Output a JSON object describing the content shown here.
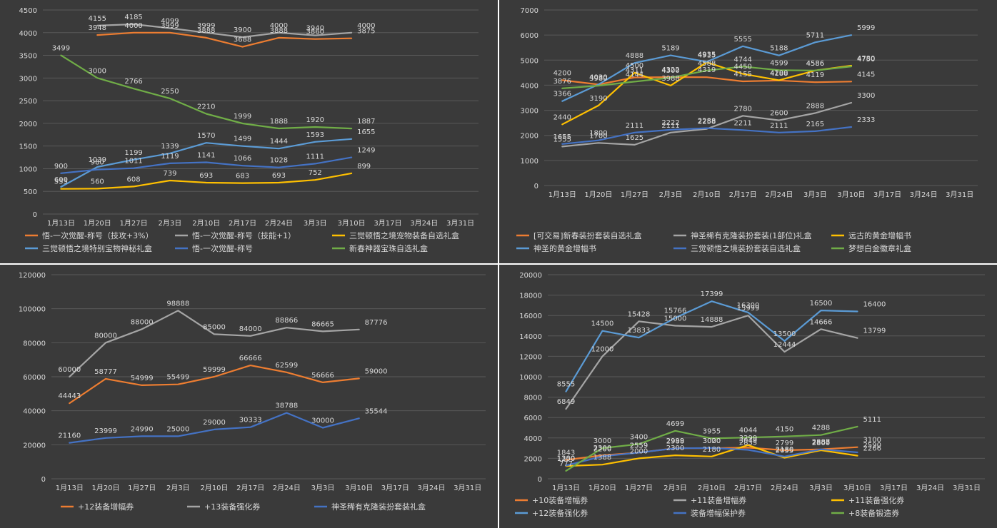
{
  "chart_data": [
    {
      "type": "line",
      "categories": [
        "1月13日",
        "1月20日",
        "1月27日",
        "2月3日",
        "2月10日",
        "2月17日",
        "2月24日",
        "3月3日",
        "3月10日",
        "3月17日",
        "3月24日",
        "3月31日"
      ],
      "ylim": [
        0,
        4500
      ],
      "yticks": [
        0,
        500,
        1000,
        1500,
        2000,
        2500,
        3000,
        3500,
        4000,
        4500
      ],
      "grid": "horizontal",
      "legend_position": "bottom",
      "series": [
        {
          "name": "悟-一次觉醒-称号（技攻+3%）",
          "color": "#ed7d31",
          "values": [
            null,
            3948,
            4000,
            3999,
            3888,
            3688,
            3888,
            3860,
            3875,
            null,
            null,
            null
          ]
        },
        {
          "name": "悟-一次觉醒-称号（技能+1）",
          "color": "#a5a5a5",
          "values": [
            null,
            4155,
            4185,
            4099,
            3999,
            3900,
            4000,
            3940,
            4000,
            null,
            null,
            null
          ]
        },
        {
          "name": "三觉顿悟之境宠物装备自选礼盒",
          "color": "#ffc000",
          "values": [
            555,
            560,
            608,
            739,
            693,
            683,
            693,
            752,
            899,
            null,
            null,
            null
          ]
        },
        {
          "name": "三觉顿悟之境特别宝物神秘礼盒",
          "color": "#5b9bd5",
          "values": [
            600,
            1039,
            1199,
            1339,
            1570,
            1499,
            1444,
            1593,
            1655,
            null,
            null,
            null
          ]
        },
        {
          "name": "悟-一次觉醒-称号",
          "color": "#4472c4",
          "values": [
            900,
            980,
            1011,
            1119,
            1141,
            1066,
            1028,
            1111,
            1249,
            null,
            null,
            null
          ]
        },
        {
          "name": "新春神器宝珠自选礼盒",
          "color": "#70ad47",
          "values": [
            3499,
            3000,
            2766,
            2550,
            2210,
            1999,
            1888,
            1920,
            1887,
            null,
            null,
            null
          ]
        }
      ]
    },
    {
      "type": "line",
      "categories": [
        "1月13日",
        "1月20日",
        "1月27日",
        "2月3日",
        "2月10日",
        "2月17日",
        "2月24日",
        "3月3日",
        "3月10日",
        "3月17日",
        "3月24日",
        "3月31日"
      ],
      "ylim": [
        0,
        7000
      ],
      "yticks": [
        0,
        1000,
        2000,
        3000,
        4000,
        5000,
        6000,
        7000
      ],
      "grid": "horizontal",
      "legend_position": "bottom",
      "series": [
        {
          "name": "[可交易]新春装扮套装自选礼盒",
          "color": "#ed7d31",
          "values": [
            4200,
            4030,
            4311,
            4322,
            4319,
            4155,
            4188,
            4119,
            4145,
            null,
            null,
            null
          ]
        },
        {
          "name": "神圣稀有克隆装扮套装(1部位)礼盒",
          "color": "#a5a5a5",
          "values": [
            1555,
            1700,
            1625,
            2111,
            2258,
            2780,
            2600,
            2888,
            3300,
            null,
            null,
            null
          ]
        },
        {
          "name": "远古的黄金增幅书",
          "color": "#ffc000",
          "values": [
            2440,
            3190,
            4500,
            3988,
            4915,
            4450,
            4200,
            4586,
            4780,
            null,
            null,
            null
          ]
        },
        {
          "name": "神圣的黄金增幅书",
          "color": "#5b9bd5",
          "values": [
            3366,
            4030,
            4888,
            5189,
            4935,
            5555,
            5188,
            5711,
            5999,
            null,
            null,
            null
          ]
        },
        {
          "name": "三觉顿悟之境装扮套装自选礼盒",
          "color": "#4472c4",
          "values": [
            1655,
            1800,
            2111,
            2222,
            2288,
            2211,
            2111,
            2165,
            2333,
            null,
            null,
            null
          ]
        },
        {
          "name": "梦想白金徽章礼盒",
          "color": "#70ad47",
          "values": [
            3876,
            3980,
            4144,
            4300,
            4588,
            4744,
            4599,
            4586,
            4750,
            null,
            null,
            null
          ]
        }
      ]
    },
    {
      "type": "line",
      "categories": [
        "1月13日",
        "1月20日",
        "1月27日",
        "2月3日",
        "2月10日",
        "2月17日",
        "2月24日",
        "3月3日",
        "3月10日",
        "3月17日",
        "3月24日",
        "3月31日"
      ],
      "ylim": [
        0,
        120000
      ],
      "yticks": [
        0,
        20000,
        40000,
        60000,
        80000,
        100000,
        120000
      ],
      "grid": "horizontal",
      "legend_position": "bottom",
      "series": [
        {
          "name": "+12装备增幅券",
          "color": "#ed7d31",
          "values": [
            44443,
            58777,
            54999,
            55499,
            59999,
            66666,
            62599,
            56666,
            59000,
            null,
            null,
            null
          ]
        },
        {
          "name": "+13装备强化券",
          "color": "#a5a5a5",
          "values": [
            60000,
            80000,
            88000,
            98888,
            85000,
            84000,
            88866,
            86665,
            87776,
            null,
            null,
            null
          ]
        },
        {
          "name": "神圣稀有克隆装扮套装礼盒",
          "color": "#4472c4",
          "values": [
            21160,
            23999,
            24990,
            25000,
            29000,
            30333,
            38788,
            30000,
            35544,
            null,
            null,
            null
          ]
        }
      ]
    },
    {
      "type": "line",
      "categories": [
        "1月13日",
        "1月20日",
        "1月27日",
        "2月3日",
        "2月10日",
        "2月17日",
        "2月24日",
        "3月3日",
        "3月10日",
        "3月17日",
        "3月24日",
        "3月31日"
      ],
      "ylim": [
        0,
        20000
      ],
      "yticks": [
        0,
        2000,
        4000,
        6000,
        8000,
        10000,
        12000,
        14000,
        16000,
        18000,
        20000
      ],
      "grid": "horizontal",
      "legend_position": "bottom",
      "series": [
        {
          "name": "+10装备增幅券",
          "color": "#ed7d31",
          "values": [
            1843,
            2300,
            2559,
            2999,
            3000,
            3049,
            2799,
            2887,
            3100,
            null,
            null,
            null
          ]
        },
        {
          "name": "+11装备增幅券",
          "color": "#a5a5a5",
          "values": [
            6849,
            12000,
            15428,
            15000,
            14888,
            15999,
            12444,
            14666,
            13799,
            null,
            null,
            null
          ]
        },
        {
          "name": "+11装备强化券",
          "color": "#ffc000",
          "values": [
            1250,
            1388,
            2000,
            2300,
            2180,
            3299,
            2055,
            2800,
            2266,
            null,
            null,
            null
          ]
        },
        {
          "name": "+12装备强化券",
          "color": "#5b9bd5",
          "values": [
            8555,
            14500,
            13833,
            15766,
            17399,
            16300,
            13500,
            16500,
            16400,
            null,
            null,
            null
          ]
        },
        {
          "name": "装备增幅保护券",
          "color": "#4472c4",
          "values": [
            1300,
            2200,
            2559,
            2988,
            3020,
            2835,
            2180,
            2888,
            2590,
            null,
            null,
            null
          ]
        },
        {
          "name": "+8装备锻造券",
          "color": "#70ad47",
          "values": [
            777,
            3000,
            3400,
            4699,
            3955,
            4044,
            4150,
            4288,
            5111,
            null,
            null,
            null
          ]
        }
      ]
    }
  ]
}
